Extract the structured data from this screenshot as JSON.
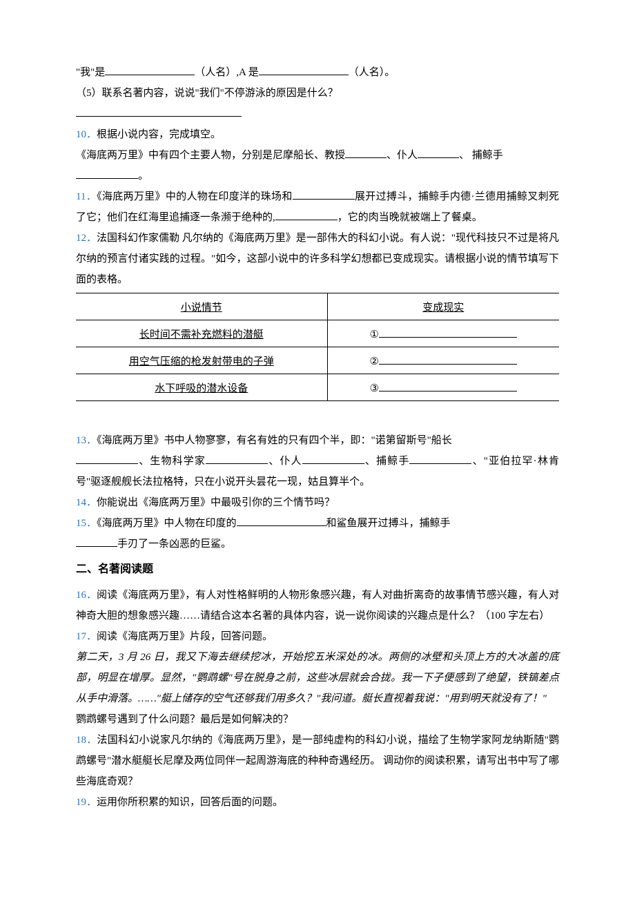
{
  "colors": {
    "text": "#000000",
    "link": "#2e74b5",
    "background": "#ffffff",
    "border": "#000000"
  },
  "typography": {
    "body_font": "SimSun",
    "body_size_pt": 11,
    "line_height": 2.0,
    "heading_font": "SimHei",
    "italic_font": "KaiTi"
  },
  "lines": {
    "l1a": "\"我\"是",
    "l1b": "（人名）,A 是",
    "l1c": "（人名）。",
    "l2": "（5）联系名著内容，说说\"我们\"不停游泳的原因是什么？",
    "q10num": "10．",
    "q10text": "根据小说内容，完成填空。",
    "q10body_a": "《海底两万里》中有四个主要人物，分别是尼摩船长、教授",
    "q10body_b": "、仆人",
    "q10body_c": "、 捕鲸手",
    "q10body_d": "。",
    "q11num": "11．",
    "q11a": "《海底两万里》中的人物在印度洋的珠场和",
    "q11b": "展开过搏斗，捕鲸手内德·兰德用捕鲸叉刺死了它；他们在红海里追捕逐一条濒于绝种的,",
    "q11c": "，它的肉当晚就被端上了餐桌。",
    "q12num": "12．",
    "q12text": "法国科幻作家儒勒 凡尔纳的《海底两万里》是一部伟大的科幻小说。有人说：\"现代科技只不过是将凡尔纳的预言付诸实践的过程。\"如今，这部小说中的许多科学幻想都已变成现实。请根据小说的情节填写下面的表格。",
    "table": {
      "header_left": "小说情节",
      "header_right": "变成现实",
      "rows": [
        {
          "left": "长时间不需补充燃料的潜艇",
          "marker": "①"
        },
        {
          "left": "用空气压缩的枪发射带电的子弹",
          "marker": "②"
        },
        {
          "left": "水下呼吸的潜水设备",
          "marker": "③"
        }
      ],
      "col_widths_pct": [
        52,
        48
      ]
    },
    "q13num": "13．",
    "q13a": "《海底两万里》书中人物寥寥，有名有姓的只有四个半，即：\"诺第留斯号\"船长",
    "q13b": "、生物科学家",
    "q13c": "、仆人",
    "q13d": "、捕鲸手",
    "q13e": "、\"亚伯拉罕·林肯号\"驱逐舰舰长法拉格特，只在小说开头昙花一现，姑且算半个。",
    "q14num": "14．",
    "q14text": "你能说出《海底两万里》中最吸引你的三个情节吗？",
    "q15num": "15．",
    "q15a": "《海底两万里》中人物在印度的",
    "q15b": "和鲨鱼展开过搏斗，捕鲸手",
    "q15c": "手刃了一条凶恶的巨鲨。",
    "section2": "二、名著阅读题",
    "q16num": "16．",
    "q16text": "阅读《海底两万里》，有人对性格鲜明的人物形象感兴趣，有人对曲折离奇的故事情节感兴趣，有人对神奇大胆的想象感兴趣……请结合这本名著的具体内容，说一说你阅读的兴趣点是什么？（100 字左右）",
    "q17num": "17．",
    "q17a": "阅读《海底两万里》片段，回答问题。",
    "q17body": "第二天，3 月 26 日，我又下海去继续挖冰，开始挖五米深处的冰。两侧的冰壁和头顶上方的大冰盖的底部，明显在增厚。显然，\"鹦鹉螺\"号在脱身之前，这些冰层就会合拢。我一下子便感到了绝望，铁镐差点从手中滑落。……\"艇上储存的空气还够我们用多久？\"我问道。艇长直视着我说：\"用到明天就没有了！\"",
    "q17q": "鹦鹉螺号遇到了什么问题？最后是如何解决的？",
    "q18num": "18．",
    "q18text": "法国科幻小说家凡尔纳的《海底两万里》，是一部纯虚构的科幻小说，描绘了生物学家阿龙纳斯随\"鹦鹉螺号\"潜水艇艇长尼摩及两位同伴一起周游海底的种种奇遇经历。 调动你的阅读积累，请写出书中写了哪些海底奇观？",
    "q19num": "19．",
    "q19text": "运用你所积累的知识，回答后面的问题。"
  }
}
